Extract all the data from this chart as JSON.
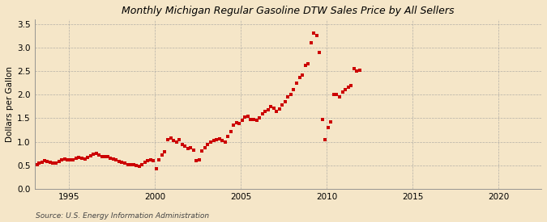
{
  "title": "Monthly Michigan Regular Gasoline DTW Sales Price by All Sellers",
  "ylabel": "Dollars per Gallon",
  "source": "Source: U.S. Energy Information Administration",
  "background_color": "#f5e6c8",
  "plot_bg_color": "#f5e6c8",
  "marker_color": "#cc0000",
  "xlim": [
    1993.0,
    2022.5
  ],
  "ylim": [
    0.0,
    3.6
  ],
  "yticks": [
    0.0,
    0.5,
    1.0,
    1.5,
    2.0,
    2.5,
    3.0,
    3.5
  ],
  "xticks": [
    1995,
    2000,
    2005,
    2010,
    2015,
    2020
  ],
  "data": [
    [
      1993.17,
      0.52
    ],
    [
      1993.25,
      0.55
    ],
    [
      1993.42,
      0.57
    ],
    [
      1993.58,
      0.6
    ],
    [
      1993.75,
      0.58
    ],
    [
      1993.92,
      0.56
    ],
    [
      1994.08,
      0.54
    ],
    [
      1994.25,
      0.55
    ],
    [
      1994.42,
      0.58
    ],
    [
      1994.58,
      0.62
    ],
    [
      1994.75,
      0.63
    ],
    [
      1994.92,
      0.61
    ],
    [
      1995.08,
      0.61
    ],
    [
      1995.25,
      0.62
    ],
    [
      1995.42,
      0.65
    ],
    [
      1995.58,
      0.67
    ],
    [
      1995.75,
      0.65
    ],
    [
      1995.92,
      0.64
    ],
    [
      1996.08,
      0.66
    ],
    [
      1996.25,
      0.7
    ],
    [
      1996.42,
      0.74
    ],
    [
      1996.58,
      0.75
    ],
    [
      1996.75,
      0.72
    ],
    [
      1996.92,
      0.69
    ],
    [
      1997.08,
      0.69
    ],
    [
      1997.25,
      0.68
    ],
    [
      1997.42,
      0.65
    ],
    [
      1997.58,
      0.63
    ],
    [
      1997.75,
      0.61
    ],
    [
      1997.92,
      0.59
    ],
    [
      1998.08,
      0.57
    ],
    [
      1998.25,
      0.54
    ],
    [
      1998.42,
      0.52
    ],
    [
      1998.58,
      0.52
    ],
    [
      1998.75,
      0.51
    ],
    [
      1998.92,
      0.49
    ],
    [
      1999.08,
      0.48
    ],
    [
      1999.25,
      0.52
    ],
    [
      1999.42,
      0.57
    ],
    [
      1999.58,
      0.6
    ],
    [
      1999.75,
      0.62
    ],
    [
      1999.92,
      0.6
    ],
    [
      2000.08,
      0.42
    ],
    [
      2000.25,
      0.62
    ],
    [
      2000.42,
      0.72
    ],
    [
      2000.58,
      0.78
    ],
    [
      2000.75,
      1.05
    ],
    [
      2000.92,
      1.08
    ],
    [
      2001.08,
      1.02
    ],
    [
      2001.25,
      1.0
    ],
    [
      2001.42,
      1.05
    ],
    [
      2001.58,
      0.94
    ],
    [
      2001.75,
      0.9
    ],
    [
      2001.92,
      0.86
    ],
    [
      2002.08,
      0.88
    ],
    [
      2002.25,
      0.83
    ],
    [
      2002.42,
      0.6
    ],
    [
      2002.58,
      0.62
    ],
    [
      2002.75,
      0.8
    ],
    [
      2002.92,
      0.88
    ],
    [
      2003.08,
      0.95
    ],
    [
      2003.25,
      1.0
    ],
    [
      2003.42,
      1.02
    ],
    [
      2003.58,
      1.05
    ],
    [
      2003.75,
      1.07
    ],
    [
      2003.92,
      1.02
    ],
    [
      2004.08,
      1.0
    ],
    [
      2004.25,
      1.12
    ],
    [
      2004.42,
      1.22
    ],
    [
      2004.58,
      1.35
    ],
    [
      2004.75,
      1.4
    ],
    [
      2004.92,
      1.38
    ],
    [
      2005.08,
      1.45
    ],
    [
      2005.25,
      1.52
    ],
    [
      2005.42,
      1.55
    ],
    [
      2005.58,
      1.48
    ],
    [
      2005.75,
      1.48
    ],
    [
      2005.92,
      1.45
    ],
    [
      2006.08,
      1.5
    ],
    [
      2006.25,
      1.6
    ],
    [
      2006.42,
      1.65
    ],
    [
      2006.58,
      1.68
    ],
    [
      2006.75,
      1.74
    ],
    [
      2006.92,
      1.72
    ],
    [
      2007.08,
      1.65
    ],
    [
      2007.25,
      1.7
    ],
    [
      2007.42,
      1.78
    ],
    [
      2007.58,
      1.85
    ],
    [
      2007.75,
      1.95
    ],
    [
      2007.92,
      2.0
    ],
    [
      2008.08,
      2.1
    ],
    [
      2008.25,
      2.25
    ],
    [
      2008.42,
      2.36
    ],
    [
      2008.58,
      2.42
    ],
    [
      2008.75,
      2.62
    ],
    [
      2008.92,
      2.65
    ],
    [
      2009.08,
      3.1
    ],
    [
      2009.25,
      3.3
    ],
    [
      2009.42,
      3.25
    ],
    [
      2009.58,
      2.9
    ],
    [
      2009.75,
      1.48
    ],
    [
      2009.92,
      1.05
    ],
    [
      2010.08,
      1.3
    ],
    [
      2010.25,
      1.42
    ],
    [
      2010.42,
      2.0
    ],
    [
      2010.58,
      2.0
    ],
    [
      2010.75,
      1.95
    ],
    [
      2010.92,
      2.05
    ],
    [
      2011.08,
      2.1
    ],
    [
      2011.25,
      2.15
    ],
    [
      2011.42,
      2.2
    ],
    [
      2011.58,
      2.55
    ],
    [
      2011.75,
      2.5
    ],
    [
      2011.92,
      2.52
    ]
  ]
}
